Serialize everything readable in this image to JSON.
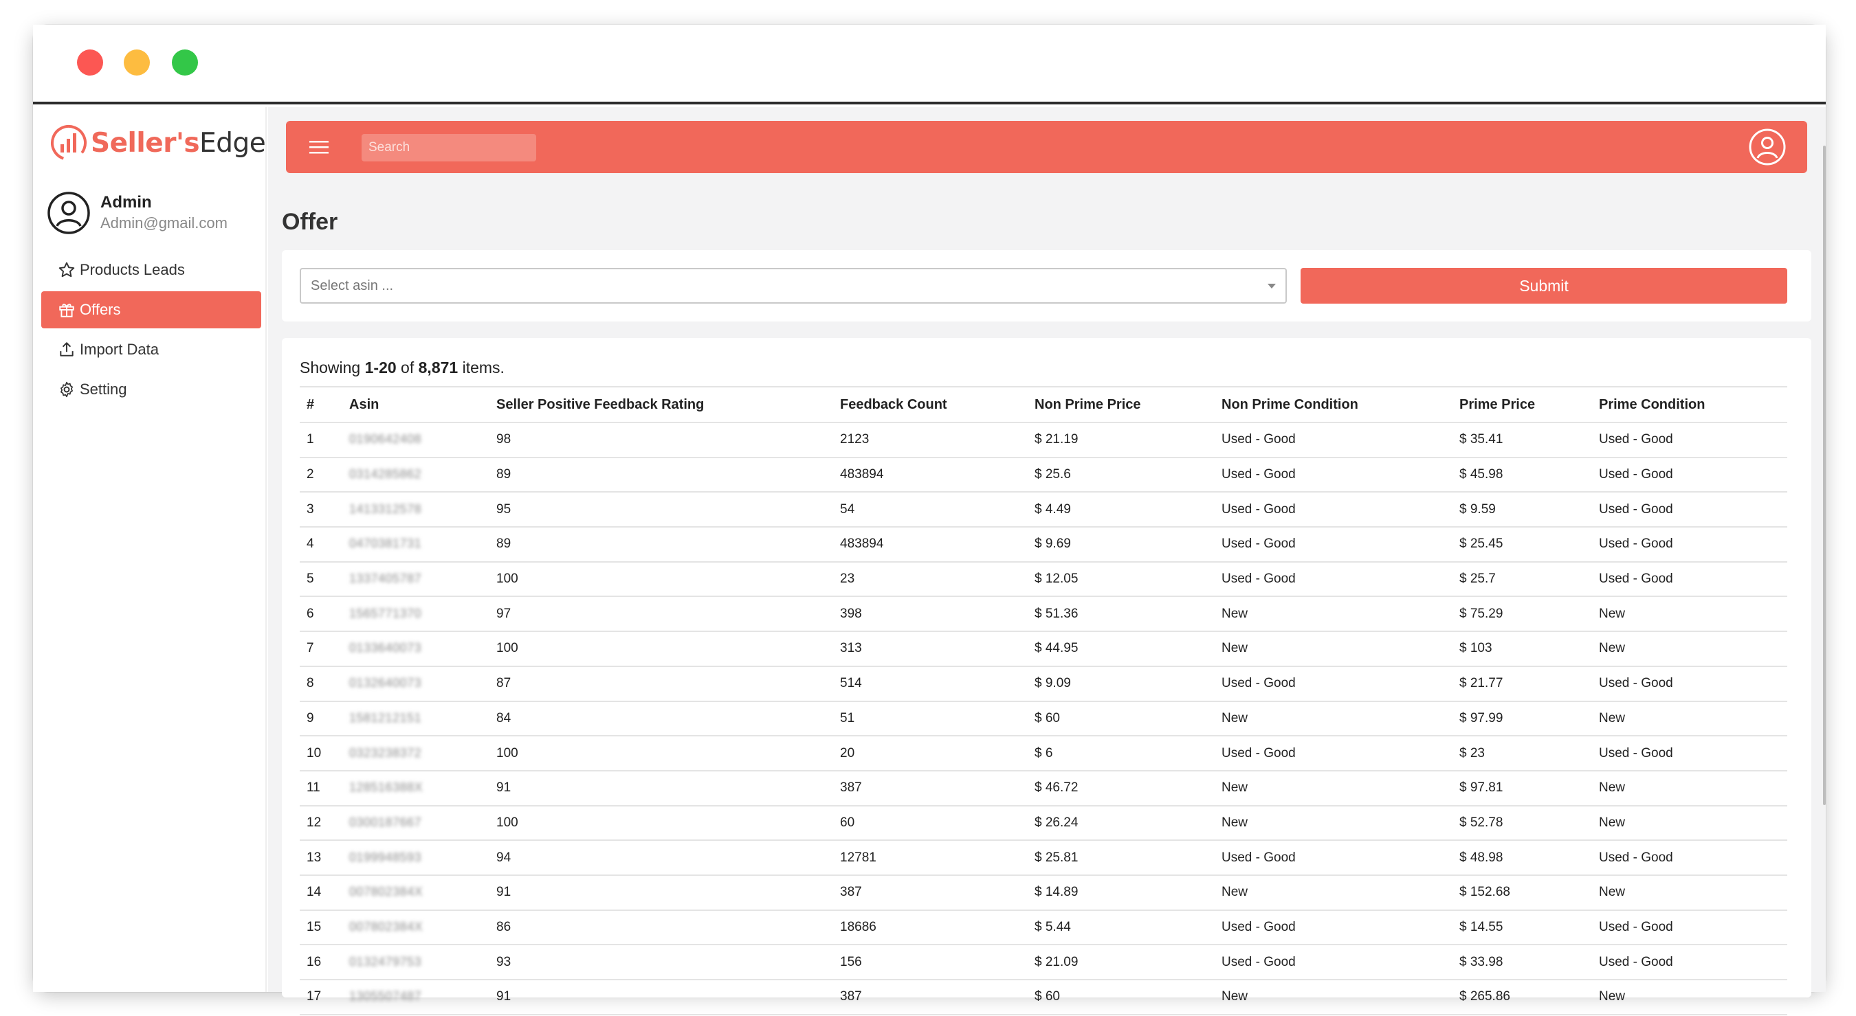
{
  "brand": {
    "name_part1": "Seller's",
    "name_part2": "Edge",
    "accent": "#f1685a"
  },
  "user": {
    "name": "Admin",
    "email": "Admin@gmail.com"
  },
  "nav": [
    {
      "label": "Products Leads",
      "icon": "star-icon"
    },
    {
      "label": "Offers",
      "icon": "gift-icon",
      "active": true
    },
    {
      "label": "Import Data",
      "icon": "upload-icon"
    },
    {
      "label": "Setting",
      "icon": "gear-icon"
    }
  ],
  "topbar": {
    "search_placeholder": "Search"
  },
  "page": {
    "title": "Offer"
  },
  "filter": {
    "select_placeholder": "Select asin ...",
    "submit_label": "Submit"
  },
  "summary": {
    "prefix": "Showing ",
    "range": "1-20",
    "of": " of ",
    "total": "8,871",
    "suffix": " items."
  },
  "table": {
    "headers": [
      "#",
      "Asin",
      "Seller Positive Feedback Rating",
      "Feedback Count",
      "Non Prime Price",
      "Non Prime Condition",
      "Prime Price",
      "Prime Condition"
    ],
    "rows": [
      [
        "1",
        "0190642408",
        "98",
        "2123",
        "$ 21.19",
        "Used - Good",
        "$ 35.41",
        "Used - Good"
      ],
      [
        "2",
        "0314285862",
        "89",
        "483894",
        "$ 25.6",
        "Used - Good",
        "$ 45.98",
        "Used - Good"
      ],
      [
        "3",
        "1413312578",
        "95",
        "54",
        "$ 4.49",
        "Used - Good",
        "$ 9.59",
        "Used - Good"
      ],
      [
        "4",
        "0470381731",
        "89",
        "483894",
        "$ 9.69",
        "Used - Good",
        "$ 25.45",
        "Used - Good"
      ],
      [
        "5",
        "1337405787",
        "100",
        "23",
        "$ 12.05",
        "Used - Good",
        "$ 25.7",
        "Used - Good"
      ],
      [
        "6",
        "1565771370",
        "97",
        "398",
        "$ 51.36",
        "New",
        "$ 75.29",
        "New"
      ],
      [
        "7",
        "0133640073",
        "100",
        "313",
        "$ 44.95",
        "New",
        "$ 103",
        "New"
      ],
      [
        "8",
        "0132640073",
        "87",
        "514",
        "$ 9.09",
        "Used - Good",
        "$ 21.77",
        "Used - Good"
      ],
      [
        "9",
        "1581212151",
        "84",
        "51",
        "$ 60",
        "New",
        "$ 97.99",
        "New"
      ],
      [
        "10",
        "0323238372",
        "100",
        "20",
        "$ 6",
        "Used - Good",
        "$ 23",
        "Used - Good"
      ],
      [
        "11",
        "128516388X",
        "91",
        "387",
        "$ 46.72",
        "New",
        "$ 97.81",
        "New"
      ],
      [
        "12",
        "0300187667",
        "100",
        "60",
        "$ 26.24",
        "New",
        "$ 52.78",
        "New"
      ],
      [
        "13",
        "0199948593",
        "94",
        "12781",
        "$ 25.81",
        "Used - Good",
        "$ 48.98",
        "Used - Good"
      ],
      [
        "14",
        "007802384X",
        "91",
        "387",
        "$ 14.89",
        "New",
        "$ 152.68",
        "New"
      ],
      [
        "15",
        "007802384X",
        "86",
        "18686",
        "$ 5.44",
        "Used - Good",
        "$ 14.55",
        "Used - Good"
      ],
      [
        "16",
        "0132479753",
        "93",
        "156",
        "$ 21.09",
        "Used - Good",
        "$ 33.98",
        "Used - Good"
      ],
      [
        "17",
        "1305507487",
        "91",
        "387",
        "$ 60",
        "New",
        "$ 265.86",
        "New"
      ]
    ]
  }
}
